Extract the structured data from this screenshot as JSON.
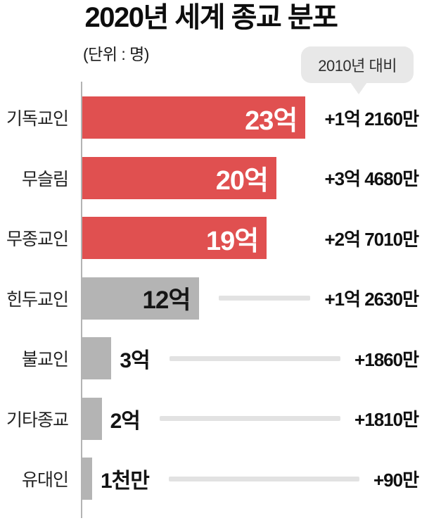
{
  "header": {
    "title": "2020년 세계 종교 분포",
    "unit_label": "(단위 : 명)",
    "callout_label": "2010년 대비"
  },
  "colors": {
    "bar_red": "#e05050",
    "bar_gray": "#b4b4b4",
    "connector_gray": "#e2e2e2",
    "callout_bg": "#e8e8e8",
    "axis_gray": "#b3b3b3"
  },
  "chart_data": {
    "type": "bar",
    "orientation": "horizontal",
    "title": "2020년 세계 종교 분포",
    "unit": "명",
    "comparison_note": "2010년 대비",
    "legend": "none",
    "grid": false,
    "categories": [
      "기독교인",
      "무슬림",
      "무종교인",
      "힌두교인",
      "불교인",
      "기타종교",
      "유대인"
    ],
    "rows": [
      {
        "label": "기독교인",
        "value_label": "23억",
        "value_eok": 23,
        "value_persons": 2300000000,
        "delta_label": "+1억 2160만",
        "delta_persons": 121600000,
        "emphasis": true,
        "value_position": "inside",
        "connector": false
      },
      {
        "label": "무슬림",
        "value_label": "20억",
        "value_eok": 20,
        "value_persons": 2000000000,
        "delta_label": "+3억 4680만",
        "delta_persons": 346800000,
        "emphasis": true,
        "value_position": "inside",
        "connector": false
      },
      {
        "label": "무종교인",
        "value_label": "19억",
        "value_eok": 19,
        "value_persons": 1900000000,
        "delta_label": "+2억 7010만",
        "delta_persons": 270100000,
        "emphasis": true,
        "value_position": "inside",
        "connector": false
      },
      {
        "label": "힌두교인",
        "value_label": "12억",
        "value_eok": 12,
        "value_persons": 1200000000,
        "delta_label": "+1억 2630만",
        "delta_persons": 126300000,
        "emphasis": false,
        "value_position": "inside",
        "connector": true
      },
      {
        "label": "불교인",
        "value_label": "3억",
        "value_eok": 3,
        "value_persons": 300000000,
        "delta_label": "+1860만",
        "delta_persons": 18600000,
        "emphasis": false,
        "value_position": "outside",
        "connector": true
      },
      {
        "label": "기타종교",
        "value_label": "2억",
        "value_eok": 2,
        "value_persons": 200000000,
        "delta_label": "+1810만",
        "delta_persons": 18100000,
        "emphasis": false,
        "value_position": "outside",
        "connector": true
      },
      {
        "label": "유대인",
        "value_label": "1천만",
        "value_eok": 0.1,
        "value_persons": 10000000,
        "delta_label": "+90만",
        "delta_persons": 900000,
        "emphasis": false,
        "value_position": "outside",
        "connector": true
      }
    ]
  }
}
